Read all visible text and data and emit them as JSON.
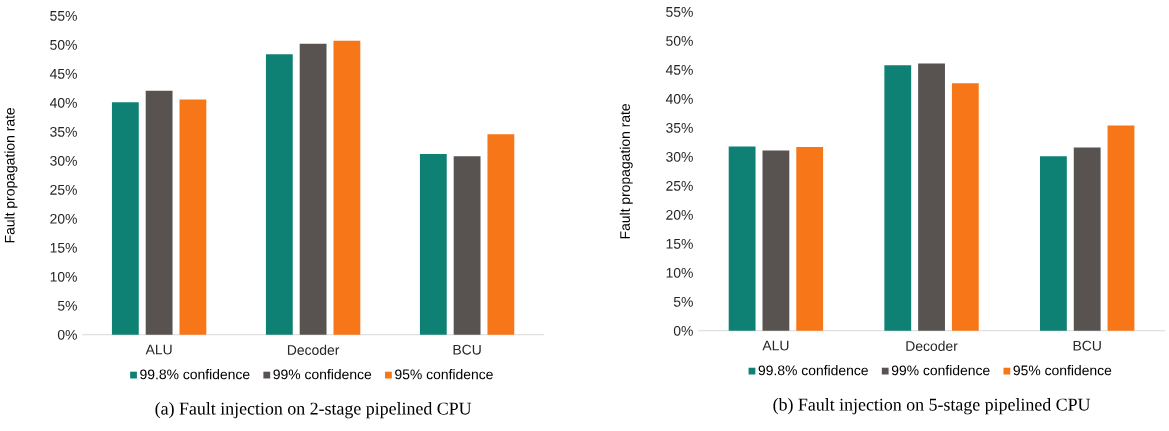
{
  "chart_data": [
    {
      "type": "bar",
      "title": "(a) Fault injection on 2-stage pipelined CPU",
      "ylabel": "Fault propagation rate",
      "categories": [
        "ALU",
        "Decoder",
        "BCU"
      ],
      "series": [
        {
          "name": "99.8% confidence",
          "color": "#0e8174",
          "values": [
            40.1,
            48.4,
            31.2
          ]
        },
        {
          "name": "99% confidence",
          "color": "#585351",
          "values": [
            42.1,
            50.2,
            30.8
          ]
        },
        {
          "name": "95% confidence",
          "color": "#f77617",
          "values": [
            40.6,
            50.7,
            34.6
          ]
        }
      ],
      "ylim": [
        0,
        55
      ],
      "yticks": [
        {
          "value": 0,
          "label": "0%"
        },
        {
          "value": 5,
          "label": "5%"
        },
        {
          "value": 10,
          "label": "10%"
        },
        {
          "value": 15,
          "label": "15%"
        },
        {
          "value": 20,
          "label": "20%"
        },
        {
          "value": 25,
          "label": "25%"
        },
        {
          "value": 30,
          "label": "30%"
        },
        {
          "value": 35,
          "label": "35%"
        },
        {
          "value": 40,
          "label": "40%"
        },
        {
          "value": 45,
          "label": "45%"
        },
        {
          "value": 50,
          "label": "50%"
        },
        {
          "value": 55,
          "label": "55%"
        }
      ],
      "legend": "bottom"
    },
    {
      "type": "bar",
      "title": "(b) Fault injection on 5-stage pipelined CPU",
      "ylabel": "Fault propagation rate",
      "categories": [
        "ALU",
        "Decoder",
        "BCU"
      ],
      "series": [
        {
          "name": "99.8% confidence",
          "color": "#0e8174",
          "values": [
            31.8,
            45.8,
            30.1
          ]
        },
        {
          "name": "99% confidence",
          "color": "#585351",
          "values": [
            31.1,
            46.1,
            31.6
          ]
        },
        {
          "name": "95% confidence",
          "color": "#f77617",
          "values": [
            31.7,
            42.7,
            35.4
          ]
        }
      ],
      "ylim": [
        0,
        55
      ],
      "yticks": [
        {
          "value": 0,
          "label": "0%"
        },
        {
          "value": 5,
          "label": "5%"
        },
        {
          "value": 10,
          "label": "10%"
        },
        {
          "value": 15,
          "label": "15%"
        },
        {
          "value": 20,
          "label": "20%"
        },
        {
          "value": 25,
          "label": "25%"
        },
        {
          "value": 30,
          "label": "30%"
        },
        {
          "value": 35,
          "label": "35%"
        },
        {
          "value": 40,
          "label": "40%"
        },
        {
          "value": 45,
          "label": "45%"
        },
        {
          "value": 50,
          "label": "50%"
        },
        {
          "value": 55,
          "label": "55%"
        }
      ],
      "legend": "bottom"
    }
  ]
}
